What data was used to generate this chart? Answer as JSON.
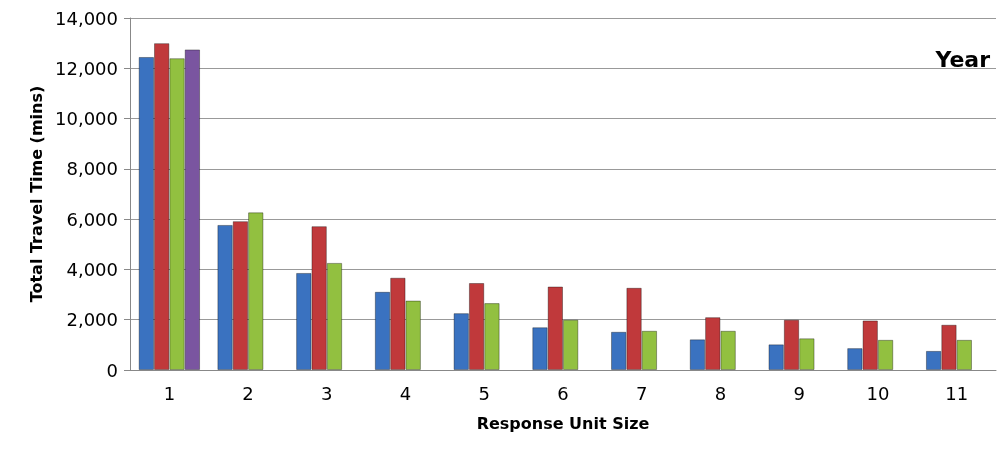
{
  "chart_data": {
    "type": "bar",
    "xlabel": "Response Unit Size",
    "ylabel": "Total Travel Time (mins)",
    "legend_title": "Year",
    "categories": [
      "1",
      "2",
      "3",
      "4",
      "5",
      "6",
      "7",
      "8",
      "9",
      "10",
      "11"
    ],
    "series": [
      {
        "color": "#3a72c0",
        "values": [
          12450,
          5770,
          3860,
          3110,
          2260,
          1700,
          1520,
          1220,
          1020,
          870,
          760
        ]
      },
      {
        "color": "#c0393b",
        "values": [
          13000,
          5920,
          5720,
          3670,
          3460,
          3320,
          3270,
          2100,
          2000,
          1970,
          1800
        ]
      },
      {
        "color": "#92c040",
        "values": [
          12400,
          6270,
          4260,
          2760,
          2660,
          2000,
          1560,
          1560,
          1260,
          1200,
          1200
        ]
      },
      {
        "color": "#7a55a0",
        "values": [
          12750,
          null,
          null,
          null,
          null,
          null,
          null,
          null,
          null,
          null,
          null
        ]
      }
    ],
    "ylim": [
      0,
      14000
    ],
    "yticks": [
      0,
      {
        "value": 2000,
        "label": "2,000"
      },
      {
        "value": 4000,
        "label": "4,000"
      },
      {
        "value": 6000,
        "label": "6,000"
      },
      {
        "value": 8000,
        "label": "8,000"
      },
      {
        "value": 10000,
        "label": "10,000"
      },
      {
        "value": 12000,
        "label": "12,000"
      },
      {
        "value": 14000,
        "label": "14,000"
      }
    ],
    "grid": "y"
  }
}
